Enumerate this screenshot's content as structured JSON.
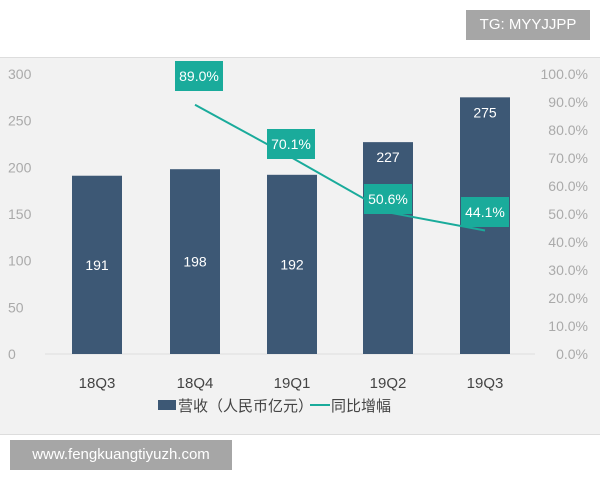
{
  "watermark_top": "TG: MYYJJPP",
  "watermark_bottom": "www.fengkuangtiyuzh.com",
  "chart_data": {
    "type": "bar+line",
    "categories": [
      "18Q3",
      "18Q4",
      "19Q1",
      "19Q2",
      "19Q3"
    ],
    "series": [
      {
        "name": "营收（人民币亿元）",
        "type": "bar",
        "axis": "left",
        "values": [
          191,
          198,
          192,
          227,
          275
        ],
        "labels": [
          "191",
          "198",
          "192",
          "227",
          "275"
        ],
        "color": "#3d5875"
      },
      {
        "name": "同比增幅",
        "type": "line",
        "axis": "right",
        "values": [
          null,
          89.0,
          70.1,
          50.6,
          44.1
        ],
        "labels": [
          "",
          "89.0%",
          "70.1%",
          "50.6%",
          "44.1%"
        ],
        "color": "#1aab9b"
      }
    ],
    "ylim_left": [
      0,
      300
    ],
    "yticks_left": [
      "0",
      "50",
      "100",
      "150",
      "200",
      "250",
      "300"
    ],
    "ylim_right": [
      0,
      100
    ],
    "yticks_right": [
      "0.0%",
      "10.0%",
      "20.0%",
      "30.0%",
      "40.0%",
      "50.0%",
      "60.0%",
      "70.0%",
      "80.0%",
      "90.0%",
      "100.0%"
    ],
    "grid": false,
    "legend": "bottom"
  }
}
